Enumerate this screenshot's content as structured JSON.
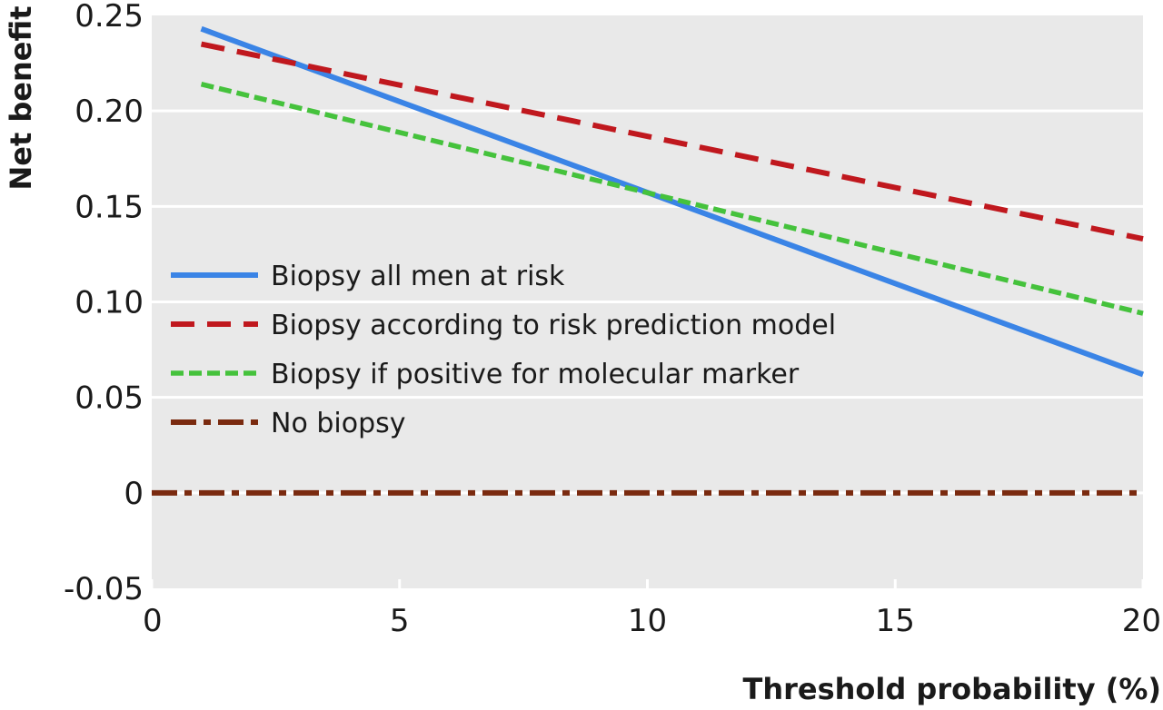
{
  "chart_data": {
    "type": "line",
    "title": "",
    "xlabel": "Threshold probability (%)",
    "ylabel": "Net benefit",
    "xlim": [
      0,
      20
    ],
    "ylim": [
      -0.05,
      0.25
    ],
    "xticks": [
      0,
      5,
      10,
      15,
      20
    ],
    "xtick_labels": [
      "0",
      "5",
      "10",
      "15",
      "20"
    ],
    "yticks": [
      -0.05,
      0,
      0.05,
      0.1,
      0.15,
      0.2,
      0.25
    ],
    "ytick_labels": [
      "-0.05",
      "0",
      "0.05",
      "0.10",
      "0.15",
      "0.20",
      "0.25"
    ],
    "grid": "horizontal",
    "legend_position": "center-left",
    "background": "#e9e9e9",
    "series": [
      {
        "name": "Biopsy all men at risk",
        "style": "solid",
        "color": "#3a84e6",
        "x": [
          1,
          20
        ],
        "y": [
          0.243,
          0.062
        ]
      },
      {
        "name": "Biopsy according to risk prediction model",
        "style": "dashed",
        "color": "#c0181e",
        "x": [
          1,
          20
        ],
        "y": [
          0.235,
          0.133
        ]
      },
      {
        "name": "Biopsy if positive for molecular marker",
        "style": "dotted",
        "color": "#45c23c",
        "x": [
          1,
          20
        ],
        "y": [
          0.214,
          0.094
        ]
      },
      {
        "name": "No biopsy",
        "style": "dashdot",
        "color": "#7a2a0f",
        "x": [
          0,
          20
        ],
        "y": [
          0,
          0
        ]
      }
    ]
  }
}
